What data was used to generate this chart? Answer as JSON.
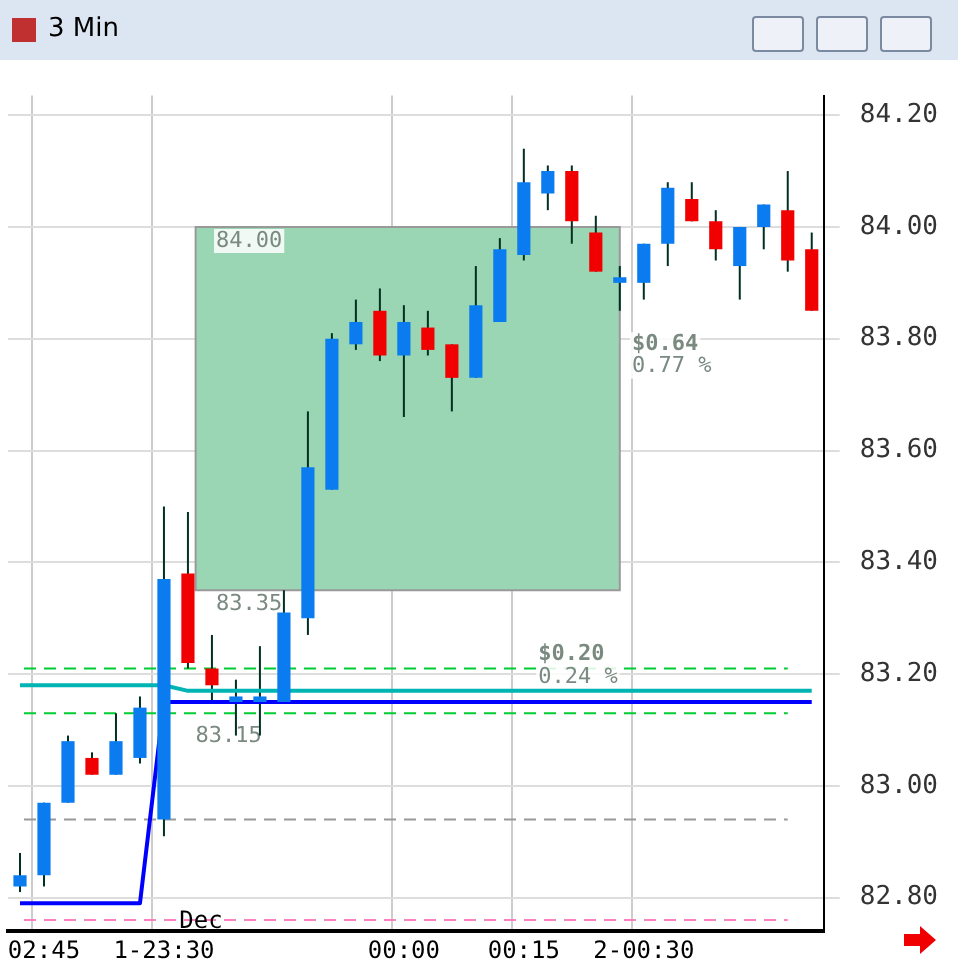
{
  "chart_data": {
    "type": "candlestick",
    "title": "3 Min",
    "categories": [
      null,
      "02:45",
      null,
      null,
      null,
      null,
      "1-23:30",
      null,
      null,
      null,
      null,
      null,
      null,
      null,
      null,
      null,
      "00:00",
      null,
      null,
      null,
      null,
      "00:15",
      null,
      null,
      null,
      null,
      "2-00:30",
      null,
      null,
      null,
      null,
      null,
      null,
      null
    ],
    "ohlc": [
      [
        82.82,
        82.88,
        82.81,
        82.84
      ],
      [
        82.84,
        82.97,
        82.82,
        82.97
      ],
      [
        82.97,
        83.09,
        82.97,
        83.08
      ],
      [
        83.05,
        83.06,
        83.02,
        83.02
      ],
      [
        83.02,
        83.13,
        83.02,
        83.08
      ],
      [
        83.05,
        83.16,
        83.04,
        83.14
      ],
      [
        82.94,
        83.5,
        82.91,
        83.37
      ],
      [
        83.38,
        83.49,
        83.21,
        83.22
      ],
      [
        83.21,
        83.27,
        83.15,
        83.18
      ],
      [
        83.15,
        83.19,
        83.09,
        83.16
      ],
      [
        83.15,
        83.25,
        83.09,
        83.16
      ],
      [
        83.15,
        83.35,
        83.15,
        83.31
      ],
      [
        83.3,
        83.67,
        83.27,
        83.57
      ],
      [
        83.53,
        83.81,
        83.53,
        83.8
      ],
      [
        83.79,
        83.87,
        83.78,
        83.83
      ],
      [
        83.85,
        83.89,
        83.76,
        83.77
      ],
      [
        83.77,
        83.86,
        83.66,
        83.83
      ],
      [
        83.82,
        83.85,
        83.77,
        83.78
      ],
      [
        83.79,
        83.79,
        83.67,
        83.73
      ],
      [
        83.73,
        83.93,
        83.73,
        83.86
      ],
      [
        83.83,
        83.98,
        83.83,
        83.96
      ],
      [
        83.95,
        84.14,
        83.94,
        84.08
      ],
      [
        84.06,
        84.11,
        84.03,
        84.1
      ],
      [
        84.1,
        84.11,
        83.97,
        84.01
      ],
      [
        83.99,
        84.02,
        83.92,
        83.92
      ],
      [
        83.9,
        83.93,
        83.85,
        83.91
      ],
      [
        83.9,
        83.97,
        83.87,
        83.97
      ],
      [
        83.97,
        84.08,
        83.93,
        84.07
      ],
      [
        84.05,
        84.08,
        84.01,
        84.01
      ],
      [
        84.01,
        84.03,
        83.94,
        83.96
      ],
      [
        83.93,
        84.0,
        83.87,
        84.0
      ],
      [
        84.0,
        84.04,
        83.96,
        84.04
      ],
      [
        84.03,
        84.1,
        83.92,
        83.94
      ],
      [
        83.96,
        83.99,
        83.85,
        83.85
      ]
    ],
    "colors": [
      "#0a7cf0",
      "#0a7cf0",
      "#0a7cf0",
      "#f00000",
      "#0a7cf0",
      "#0a7cf0",
      "#0a7cf0",
      "#f00000",
      "#f00000",
      "#0a7cf0",
      "#0a7cf0",
      "#0a7cf0",
      "#0a7cf0",
      "#0a7cf0",
      "#0a7cf0",
      "#f00000",
      "#0a7cf0",
      "#f00000",
      "#f00000",
      "#0a7cf0",
      "#0a7cf0",
      "#0a7cf0",
      "#0a7cf0",
      "#f00000",
      "#f00000",
      "#0a7cf0",
      "#0a7cf0",
      "#0a7cf0",
      "#f00000",
      "#f00000",
      "#0a7cf0",
      "#0a7cf0",
      "#f00000",
      "#f00000"
    ],
    "series": [
      {
        "type": "line",
        "color": "#0000ff",
        "values": [
          82.79,
          82.79,
          82.79,
          82.79,
          82.79,
          82.79,
          83.15,
          83.15,
          83.15,
          83.15,
          83.15,
          83.15,
          83.15,
          83.15,
          83.15,
          83.15,
          83.15,
          83.15,
          83.15,
          83.15,
          83.15,
          83.15,
          83.15,
          83.15,
          83.15,
          83.15,
          83.15,
          83.15,
          83.15,
          83.15,
          83.15,
          83.15,
          83.15,
          83.15
        ]
      },
      {
        "type": "line",
        "color": "#00b4b4",
        "values": [
          83.18,
          83.18,
          83.18,
          83.18,
          83.18,
          83.18,
          83.18,
          83.17,
          83.17,
          83.17,
          83.17,
          83.17,
          83.17,
          83.17,
          83.17,
          83.17,
          83.17,
          83.17,
          83.17,
          83.17,
          83.17,
          83.17,
          83.17,
          83.17,
          83.17,
          83.17,
          83.17,
          83.17,
          83.17,
          83.17,
          83.17,
          83.17,
          83.17,
          83.17
        ]
      }
    ],
    "ref_lines": [
      {
        "axis": "y",
        "value": 83.21,
        "color": "#00cc33",
        "line_style": "dashed"
      },
      {
        "axis": "y",
        "value": 83.13,
        "color": "#00cc33",
        "line_style": "dashed"
      },
      {
        "axis": "y",
        "value": 82.94,
        "color": "#999999",
        "line_style": "dashed"
      },
      {
        "axis": "y",
        "value": 82.76,
        "color": "#ff80c0",
        "line_style": "dashed",
        "label": "Dec"
      }
    ],
    "bands": [
      {
        "axis": "y",
        "from": 83.35,
        "to": 84.0,
        "color": "#9bd6b4"
      }
    ],
    "annotations": [
      {
        "text": "84.00",
        "y": 84.0
      },
      {
        "text": "83.35",
        "y": 83.35
      },
      {
        "text": "83.15",
        "y": 83.15
      },
      "$0.64",
      "0.77 %",
      "$0.20",
      "0.24 %"
    ],
    "ylim": [
      82.74,
      84.235
    ],
    "yticks": [
      {
        "value": 82.8,
        "label": "82.80"
      },
      {
        "value": 83.0,
        "label": "83.00"
      },
      {
        "value": 83.2,
        "label": "83.20"
      },
      {
        "value": 83.4,
        "label": "83.40"
      },
      {
        "value": 83.6,
        "label": "83.60"
      },
      {
        "value": 83.8,
        "label": "83.80"
      },
      {
        "value": 84.0,
        "label": "84.00"
      },
      {
        "value": 84.2,
        "label": "84.20"
      }
    ],
    "grid": true,
    "legend": false
  }
}
